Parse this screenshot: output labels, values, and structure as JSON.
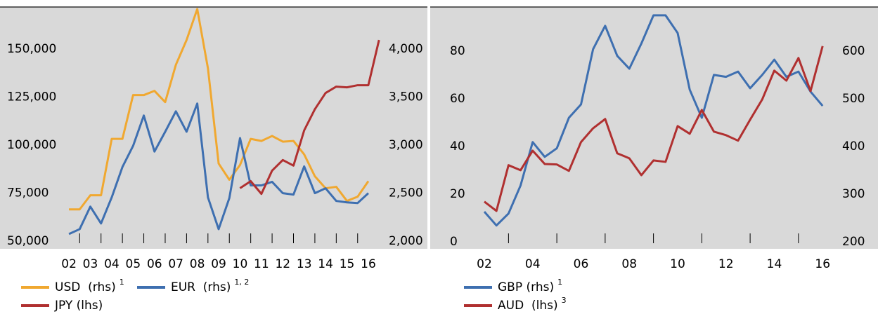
{
  "chart_data": [
    {
      "type": "line",
      "xlim": [
        -1.06,
        16.79
      ],
      "xticks": [
        {
          "value": 2,
          "label": "02"
        },
        {
          "value": 3,
          "label": "03"
        },
        {
          "value": 4,
          "label": "04"
        },
        {
          "value": 5,
          "label": "05"
        },
        {
          "value": 6,
          "label": "06"
        },
        {
          "value": 7,
          "label": "07"
        },
        {
          "value": 8,
          "label": "08"
        },
        {
          "value": 9,
          "label": "09"
        },
        {
          "value": 10,
          "label": "10"
        },
        {
          "value": 11,
          "label": "11"
        },
        {
          "value": 12,
          "label": "12"
        },
        {
          "value": 13,
          "label": "13"
        },
        {
          "value": 14,
          "label": "14"
        },
        {
          "value": 15,
          "label": "15"
        },
        {
          "value": 16,
          "label": "16"
        }
      ],
      "ylim": [
        46000,
        172000
      ],
      "yticks": [
        {
          "value": 50000,
          "label": "50,000"
        },
        {
          "value": 75000,
          "label": "75,000"
        },
        {
          "value": 100000,
          "label": "100,000"
        },
        {
          "value": 125000,
          "label": "125,000"
        },
        {
          "value": 150000,
          "label": "150,000"
        }
      ],
      "y2lim": [
        1920,
        4440
      ],
      "y2ticks": [
        {
          "value": 2000,
          "label": "2,000"
        },
        {
          "value": 2500,
          "label": "2,500"
        },
        {
          "value": 3000,
          "label": "3,000"
        },
        {
          "value": 3500,
          "label": "3,500"
        },
        {
          "value": 4000,
          "label": "4,000"
        }
      ],
      "series": [
        {
          "name": "USD  (rhs)",
          "note": "1",
          "color": "#f0a830",
          "axis": "y2",
          "x": [
            2,
            2.5,
            3,
            3.5,
            4,
            4.5,
            5,
            5.5,
            6,
            6.5,
            7,
            7.5,
            8,
            8.5,
            9,
            9.5,
            10,
            10.5,
            11,
            11.5,
            12,
            12.5,
            13,
            13.5,
            14,
            14.5,
            15,
            15.5,
            16
          ],
          "values": [
            2331,
            2331,
            2478,
            2478,
            3066,
            3066,
            3522,
            3522,
            3566,
            3449,
            3838,
            4096,
            4419,
            3801,
            2809,
            2640,
            2794,
            3066,
            3044,
            3096,
            3037,
            3044,
            2904,
            2676,
            2551,
            2566,
            2419,
            2463,
            2625
          ]
        },
        {
          "name": "EUR  (rhs)",
          "note": "1, 2",
          "color": "#3e6fb0",
          "axis": "y2",
          "x": [
            2,
            2.5,
            3,
            3.5,
            4,
            4.5,
            5,
            5.5,
            6,
            6.5,
            7,
            7.5,
            8,
            8.5,
            9,
            9.5,
            10,
            10.5,
            11,
            11.5,
            12,
            12.5,
            13,
            13.5,
            14,
            14.5,
            15,
            15.5,
            16
          ],
          "values": [
            2074,
            2125,
            2360,
            2184,
            2456,
            2772,
            2993,
            3309,
            2934,
            3140,
            3353,
            3140,
            3434,
            2456,
            2125,
            2449,
            3074,
            2581,
            2581,
            2618,
            2500,
            2485,
            2779,
            2500,
            2551,
            2419,
            2404,
            2397,
            2500
          ]
        },
        {
          "name": "JPY (lhs)",
          "color": "#b03030",
          "x": [
            10,
            10.5,
            11,
            11.5,
            12,
            12.5,
            13,
            13.5,
            14,
            14.5,
            15,
            15.5,
            16,
            16.5
          ],
          "values": [
            77574,
            81250,
            74632,
            86765,
            92279,
            89338,
            107721,
            118750,
            127206,
            130515,
            130147,
            131250,
            131250,
            154779
          ]
        }
      ]
    },
    {
      "type": "line",
      "xlim": [
        -0.24,
        18.03
      ],
      "xticks": [
        {
          "value": 2,
          "label": "02"
        },
        {
          "value": 4,
          "label": "04"
        },
        {
          "value": 6,
          "label": "06"
        },
        {
          "value": 8,
          "label": "08"
        },
        {
          "value": 10,
          "label": "10"
        },
        {
          "value": 12,
          "label": "12"
        },
        {
          "value": 14,
          "label": "14"
        },
        {
          "value": 16,
          "label": "16"
        }
      ],
      "ylim": [
        -3,
        98.5
      ],
      "yticks": [
        0,
        20,
        40,
        60,
        80
      ],
      "y2lim": [
        185,
        692.5
      ],
      "y2ticks": [
        200,
        300,
        400,
        500,
        600
      ],
      "series": [
        {
          "name": "GBP (rhs)",
          "note": "1",
          "color": "#3e6fb0",
          "axis": "y2",
          "x": [
            2,
            2.5,
            3,
            3.5,
            4,
            4.5,
            5,
            5.5,
            6,
            6.5,
            7,
            7.5,
            8,
            8.5,
            9,
            9.5,
            10,
            10.5,
            11,
            11.5,
            12,
            12.5,
            13,
            13.5,
            14,
            14.5,
            15,
            15.5,
            16
          ],
          "values": [
            263,
            234,
            259,
            318,
            409,
            378,
            396,
            460,
            488,
            604,
            653,
            590,
            563,
            616,
            675,
            675,
            638,
            519,
            460,
            550,
            546,
            557,
            522,
            550,
            582,
            546,
            557,
            515,
            485
          ]
        },
        {
          "name": "AUD  (lhs)",
          "note": "3",
          "color": "#b03030",
          "x": [
            2,
            2.5,
            3,
            3.5,
            4,
            4.5,
            5,
            5.5,
            6,
            6.5,
            7,
            7.5,
            8,
            8.5,
            9,
            9.5,
            10,
            10.5,
            11,
            11.5,
            12,
            12.5,
            13,
            13.5,
            14,
            14.5,
            15,
            15.5,
            16
          ],
          "values": [
            16.8,
            12.9,
            32.1,
            30.0,
            38.2,
            32.6,
            32.4,
            29.7,
            41.8,
            47.6,
            51.5,
            37.1,
            35.0,
            27.9,
            34.1,
            33.5,
            48.5,
            45.3,
            55.3,
            46.2,
            44.7,
            42.4,
            51.2,
            59.7,
            71.8,
            67.6,
            77.1,
            63.2,
            82.1
          ]
        }
      ]
    }
  ]
}
